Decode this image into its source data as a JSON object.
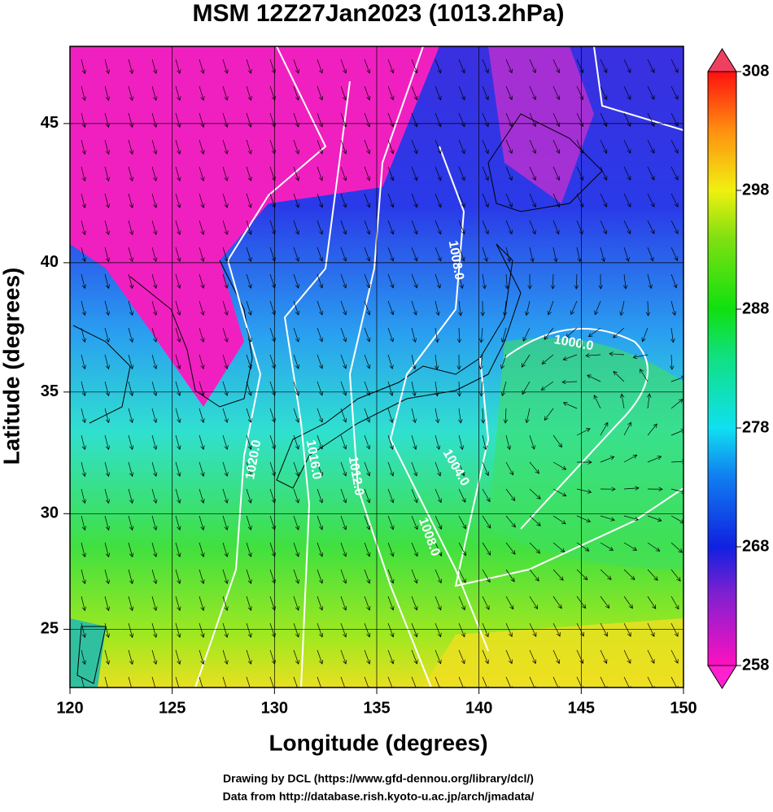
{
  "title": "MSM 12Z27Jan2023 (1013.2hPa)",
  "map": {
    "projection": "mercator",
    "x_axis": {
      "label": "Longitude (degrees)",
      "lim": [
        120,
        150
      ],
      "ticks": [
        120,
        125,
        130,
        135,
        140,
        145,
        150
      ]
    },
    "y_axis": {
      "label": "Latitude  (degrees)",
      "lim": [
        22.4,
        47.6
      ],
      "ticks": [
        25,
        30,
        35,
        40,
        45
      ]
    },
    "contour_labels": [
      "1008.0",
      "1000.0",
      "1020.0",
      "1016.0",
      "1012.0",
      "1004.0",
      "1008.0"
    ]
  },
  "colorbar": {
    "lim": [
      258,
      308
    ],
    "ticks": [
      258,
      268,
      278,
      288,
      298,
      308
    ]
  },
  "credits": [
    "Drawing by DCL (https://www.gfd-dennou.org/library/dcl/)",
    "Data from http://database.rish.kyoto-u.ac.jp/arch/jmadata/"
  ]
}
